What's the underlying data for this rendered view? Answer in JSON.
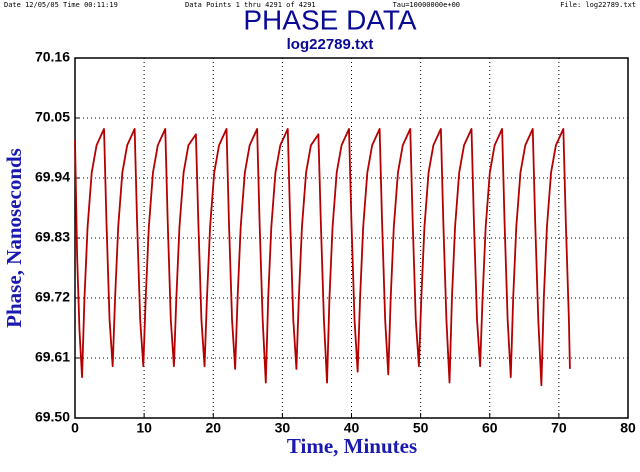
{
  "chart_data": {
    "type": "line",
    "title": "PHASE DATA",
    "subtitle": "log22789.txt",
    "annotations": [
      "Date 12/05/05 Time 00:11:19",
      "Data Points 1 thru 4291 of 4291",
      "Tau=10000000e+00",
      "File: log22789.txt"
    ],
    "x_label": "Time, Minutes",
    "y_label": "Phase, Nanoseconds",
    "color": "#b40000",
    "grid": true,
    "xlim": [
      0,
      80
    ],
    "xticks": [
      0,
      10,
      20,
      30,
      40,
      50,
      60,
      70,
      80
    ],
    "ylim": [
      69.5,
      70.16
    ],
    "yticks": [
      {
        "value": 69.5,
        "label": "69.50"
      },
      69.61,
      69.72,
      69.83,
      69.94,
      70.05,
      70.16
    ],
    "x": [
      0,
      0.3,
      0.65,
      1.02,
      1.37,
      1.82,
      2.42,
      3.12,
      4.2,
      4.55,
      5.0,
      5.45,
      5.8,
      6.25,
      6.85,
      7.55,
      8.63,
      8.98,
      9.43,
      9.88,
      10.23,
      10.68,
      11.28,
      11.98,
      13.06,
      13.41,
      13.86,
      14.31,
      14.66,
      15.11,
      15.71,
      16.41,
      17.49,
      17.84,
      18.29,
      18.74,
      19.09,
      19.54,
      20.14,
      20.84,
      21.92,
      22.27,
      22.72,
      23.17,
      23.52,
      23.97,
      24.57,
      25.27,
      26.35,
      26.7,
      27.15,
      27.6,
      27.95,
      28.4,
      29.0,
      29.7,
      30.78,
      31.13,
      31.58,
      32.03,
      32.38,
      32.83,
      33.43,
      34.13,
      35.21,
      35.56,
      36.01,
      36.46,
      36.81,
      37.26,
      37.86,
      38.56,
      39.64,
      39.99,
      40.44,
      40.89,
      41.24,
      41.69,
      42.29,
      42.99,
      44.07,
      44.42,
      44.87,
      45.32,
      45.67,
      46.12,
      46.72,
      47.42,
      48.5,
      48.85,
      49.3,
      49.75,
      50.1,
      50.55,
      51.15,
      51.85,
      52.93,
      53.28,
      53.73,
      54.18,
      54.53,
      54.98,
      55.58,
      56.28,
      57.36,
      57.71,
      58.16,
      58.61,
      58.96,
      59.41,
      60.01,
      60.71,
      61.79,
      62.14,
      62.59,
      63.04,
      63.39,
      63.84,
      64.44,
      65.14,
      66.22,
      66.57,
      67.02,
      67.47,
      67.82,
      68.27,
      68.87,
      69.57,
      70.65,
      71.0,
      71.45,
      71.6
    ],
    "values": [
      70.01,
      69.8,
      69.66,
      69.575,
      69.72,
      69.85,
      69.95,
      70.0,
      70.03,
      69.86,
      69.68,
      69.595,
      69.72,
      69.85,
      69.95,
      70.0,
      70.03,
      69.86,
      69.68,
      69.595,
      69.72,
      69.85,
      69.95,
      70.0,
      70.03,
      69.86,
      69.68,
      69.595,
      69.72,
      69.85,
      69.95,
      70.0,
      70.02,
      69.86,
      69.68,
      69.595,
      69.72,
      69.85,
      69.95,
      70.0,
      70.03,
      69.86,
      69.68,
      69.59,
      69.72,
      69.85,
      69.95,
      70.0,
      70.03,
      69.86,
      69.68,
      69.565,
      69.72,
      69.85,
      69.95,
      70.0,
      70.03,
      69.86,
      69.68,
      69.59,
      69.72,
      69.85,
      69.95,
      70.0,
      70.02,
      69.86,
      69.68,
      69.565,
      69.72,
      69.85,
      69.95,
      70.0,
      70.03,
      69.86,
      69.68,
      69.585,
      69.72,
      69.85,
      69.95,
      70.0,
      70.03,
      69.86,
      69.68,
      69.58,
      69.72,
      69.85,
      69.95,
      70.0,
      70.03,
      69.86,
      69.68,
      69.595,
      69.72,
      69.85,
      69.95,
      70.0,
      70.03,
      69.86,
      69.68,
      69.565,
      69.72,
      69.85,
      69.95,
      70.0,
      70.03,
      69.86,
      69.68,
      69.595,
      69.72,
      69.85,
      69.95,
      70.0,
      70.03,
      69.86,
      69.68,
      69.575,
      69.72,
      69.85,
      69.95,
      70.0,
      70.03,
      69.86,
      69.68,
      69.56,
      69.72,
      69.85,
      69.95,
      70.0,
      70.03,
      69.86,
      69.68,
      69.59
    ]
  }
}
